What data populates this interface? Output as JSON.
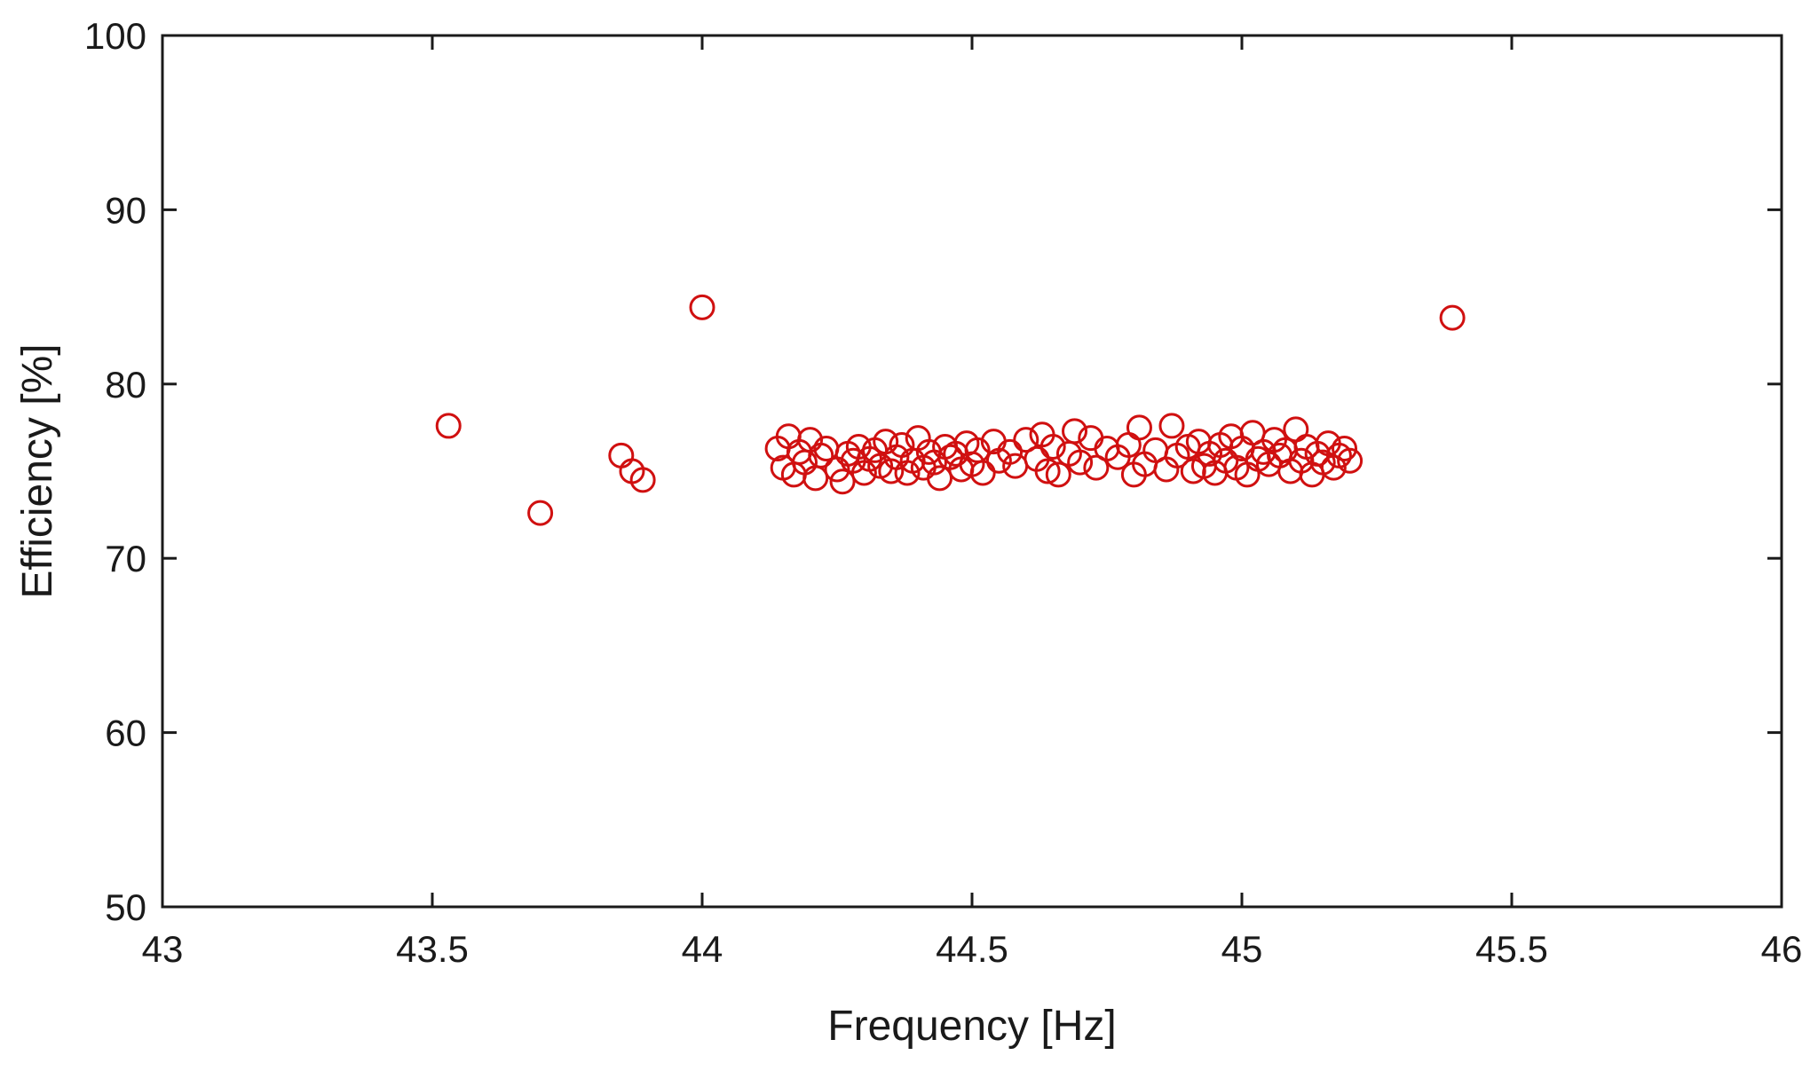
{
  "chart_data": {
    "type": "scatter",
    "title": "",
    "xlabel": "Frequency [Hz]",
    "ylabel": "Efficiency [%]",
    "xlim": [
      43,
      46
    ],
    "ylim": [
      50,
      100
    ],
    "xticks": [
      "43",
      "43.5",
      "44",
      "44.5",
      "45",
      "45.5",
      "46"
    ],
    "yticks": [
      "50",
      "60",
      "70",
      "80",
      "90",
      "100"
    ],
    "grid": false,
    "legend": "none",
    "marker": "circle-open",
    "marker_color": "#d01010",
    "series": [
      {
        "points": [
          [
            43.53,
            77.6
          ],
          [
            43.7,
            72.6
          ],
          [
            43.85,
            75.9
          ],
          [
            43.87,
            75.0
          ],
          [
            43.89,
            74.5
          ],
          [
            44.0,
            84.4
          ],
          [
            45.39,
            83.8
          ],
          [
            44.14,
            76.3
          ],
          [
            44.15,
            75.2
          ],
          [
            44.16,
            77.0
          ],
          [
            44.17,
            74.8
          ],
          [
            44.18,
            76.1
          ],
          [
            44.19,
            75.5
          ],
          [
            44.2,
            76.8
          ],
          [
            44.21,
            74.6
          ],
          [
            44.22,
            75.9
          ],
          [
            44.23,
            76.3
          ],
          [
            44.25,
            75.1
          ],
          [
            44.26,
            74.4
          ],
          [
            44.27,
            76.0
          ],
          [
            44.28,
            75.6
          ],
          [
            44.29,
            76.4
          ],
          [
            44.3,
            74.9
          ],
          [
            44.31,
            75.7
          ],
          [
            44.32,
            76.2
          ],
          [
            44.33,
            75.3
          ],
          [
            44.34,
            76.7
          ],
          [
            44.35,
            75.0
          ],
          [
            44.36,
            75.8
          ],
          [
            44.37,
            76.5
          ],
          [
            44.38,
            74.9
          ],
          [
            44.39,
            75.6
          ],
          [
            44.4,
            76.9
          ],
          [
            44.41,
            75.2
          ],
          [
            44.42,
            76.1
          ],
          [
            44.43,
            75.5
          ],
          [
            44.44,
            74.6
          ],
          [
            44.45,
            76.4
          ],
          [
            44.46,
            75.8
          ],
          [
            44.47,
            76.0
          ],
          [
            44.48,
            75.1
          ],
          [
            44.49,
            76.6
          ],
          [
            44.5,
            75.4
          ],
          [
            44.51,
            76.2
          ],
          [
            44.52,
            74.9
          ],
          [
            44.54,
            76.7
          ],
          [
            44.55,
            75.6
          ],
          [
            44.57,
            76.1
          ],
          [
            44.58,
            75.3
          ],
          [
            44.6,
            76.8
          ],
          [
            44.62,
            75.7
          ],
          [
            44.63,
            77.1
          ],
          [
            44.64,
            75.0
          ],
          [
            44.65,
            76.4
          ],
          [
            44.66,
            74.8
          ],
          [
            44.68,
            76.0
          ],
          [
            44.69,
            77.3
          ],
          [
            44.7,
            75.5
          ],
          [
            44.72,
            76.9
          ],
          [
            44.73,
            75.2
          ],
          [
            44.75,
            76.3
          ],
          [
            44.77,
            75.8
          ],
          [
            44.79,
            76.5
          ],
          [
            44.8,
            74.8
          ],
          [
            44.81,
            77.5
          ],
          [
            44.82,
            75.4
          ],
          [
            44.84,
            76.2
          ],
          [
            44.86,
            75.1
          ],
          [
            44.87,
            77.6
          ],
          [
            44.88,
            75.9
          ],
          [
            44.9,
            76.4
          ],
          [
            44.91,
            75.0
          ],
          [
            44.92,
            76.7
          ],
          [
            44.93,
            75.3
          ],
          [
            44.94,
            76.0
          ],
          [
            44.95,
            74.9
          ],
          [
            44.96,
            76.5
          ],
          [
            44.97,
            75.6
          ],
          [
            44.98,
            77.0
          ],
          [
            44.99,
            75.2
          ],
          [
            45.0,
            76.3
          ],
          [
            45.01,
            74.8
          ],
          [
            45.02,
            77.2
          ],
          [
            45.03,
            75.7
          ],
          [
            45.04,
            76.1
          ],
          [
            45.05,
            75.4
          ],
          [
            45.06,
            76.8
          ],
          [
            45.07,
            75.9
          ],
          [
            45.08,
            76.2
          ],
          [
            45.09,
            75.0
          ],
          [
            45.1,
            77.4
          ],
          [
            45.11,
            75.6
          ],
          [
            45.12,
            76.4
          ],
          [
            45.13,
            74.8
          ],
          [
            45.14,
            76.0
          ],
          [
            45.15,
            75.5
          ],
          [
            45.16,
            76.6
          ],
          [
            45.17,
            75.2
          ],
          [
            45.18,
            75.9
          ],
          [
            45.19,
            76.3
          ],
          [
            45.2,
            75.6
          ]
        ]
      }
    ]
  }
}
